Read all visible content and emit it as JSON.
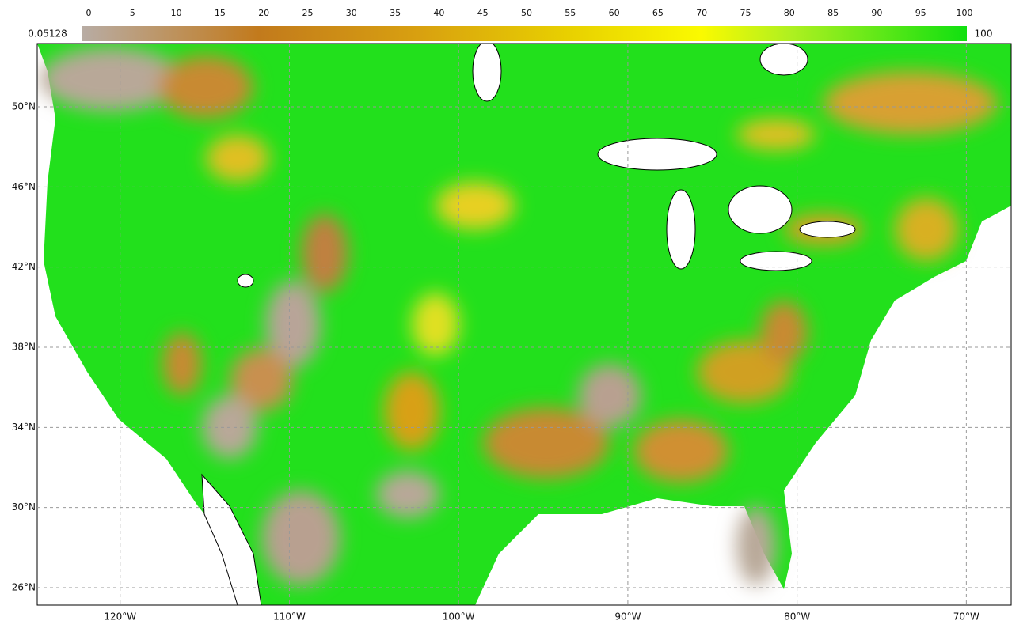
{
  "colorbar": {
    "range": [
      0,
      100
    ],
    "ticks": [
      0,
      5,
      10,
      15,
      20,
      25,
      30,
      35,
      40,
      45,
      50,
      55,
      60,
      65,
      70,
      75,
      80,
      85,
      90,
      95,
      100
    ],
    "min_label": "0.05128",
    "max_label": "100"
  },
  "map": {
    "lon_range": [
      -124.9,
      -67.35
    ],
    "lat_range": [
      53.16,
      25.13
    ],
    "lat_ticks": [
      {
        "value": 50,
        "label": "50°N"
      },
      {
        "value": 46,
        "label": "46°N"
      },
      {
        "value": 42,
        "label": "42°N"
      },
      {
        "value": 38,
        "label": "38°N"
      },
      {
        "value": 34,
        "label": "34°N"
      },
      {
        "value": 30,
        "label": "30°N"
      },
      {
        "value": 26,
        "label": "26°N"
      }
    ],
    "lon_ticks": [
      {
        "value": -120,
        "label": "120°W"
      },
      {
        "value": -110,
        "label": "110°W"
      },
      {
        "value": -100,
        "label": "100°W"
      },
      {
        "value": -90,
        "label": "90°W"
      },
      {
        "value": -80,
        "label": "80°W"
      },
      {
        "value": -70,
        "label": "70°W"
      }
    ]
  }
}
